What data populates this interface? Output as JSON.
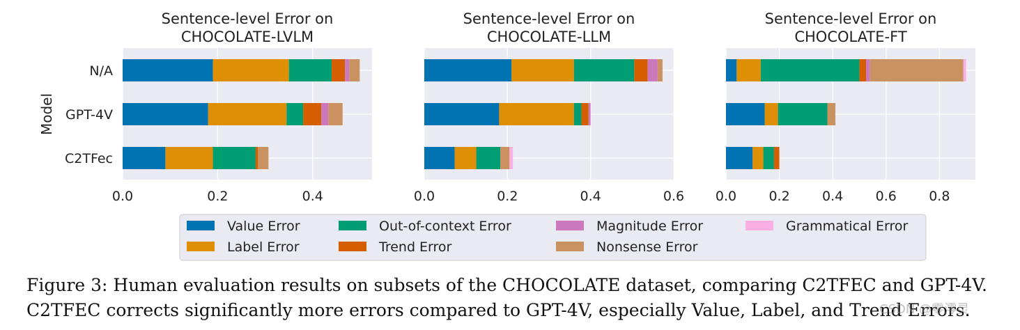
{
  "colors": {
    "Value Error": "#0173b2",
    "Label Error": "#de8f05",
    "Out-of-context Error": "#029e73",
    "Trend Error": "#d55e00",
    "Magnitude Error": "#cc78bc",
    "Nonsense Error": "#ca9161",
    "Grammatical Error": "#fbafe4",
    "panel_bg": "#eaeaf2"
  },
  "chart_data": [
    {
      "type": "bar",
      "orientation": "horizontal-stacked",
      "title_line1": "Sentence-level Error on",
      "title_line2": "CHOCOLATE-LVLM",
      "ylabel": "Model",
      "categories": [
        "N/A",
        "GPT-4V",
        "C2TFec"
      ],
      "xlim": [
        0,
        0.525
      ],
      "xticks": [
        "0.0",
        "0.2",
        "0.4"
      ],
      "xtick_values": [
        0,
        0.2,
        0.4
      ],
      "series": [
        {
          "name": "Value Error",
          "values": [
            0.19,
            0.18,
            0.09
          ]
        },
        {
          "name": "Label Error",
          "values": [
            0.16,
            0.165,
            0.1
          ]
        },
        {
          "name": "Out-of-context Error",
          "values": [
            0.09,
            0.035,
            0.09
          ]
        },
        {
          "name": "Trend Error",
          "values": [
            0.028,
            0.038,
            0.005
          ]
        },
        {
          "name": "Magnitude Error",
          "values": [
            0.009,
            0.015,
            0.0
          ]
        },
        {
          "name": "Nonsense Error",
          "values": [
            0.022,
            0.03,
            0.022
          ]
        },
        {
          "name": "Grammatical Error",
          "values": [
            0.0,
            0.0,
            0.0
          ]
        }
      ]
    },
    {
      "type": "bar",
      "orientation": "horizontal-stacked",
      "title_line1": "Sentence-level Error on",
      "title_line2": "CHOCOLATE-LLM",
      "categories": [
        "N/A",
        "GPT-4V",
        "C2TFec"
      ],
      "xlim": [
        0,
        0.6
      ],
      "xticks": [
        "0.0",
        "0.2",
        "0.4",
        "0.6"
      ],
      "xtick_values": [
        0,
        0.2,
        0.4,
        0.6
      ],
      "series": [
        {
          "name": "Value Error",
          "values": [
            0.21,
            0.18,
            0.073
          ]
        },
        {
          "name": "Label Error",
          "values": [
            0.15,
            0.18,
            0.052
          ]
        },
        {
          "name": "Out-of-context Error",
          "values": [
            0.145,
            0.018,
            0.058
          ]
        },
        {
          "name": "Trend Error",
          "values": [
            0.032,
            0.017,
            0.0
          ]
        },
        {
          "name": "Magnitude Error",
          "values": [
            0.024,
            0.005,
            0.0
          ]
        },
        {
          "name": "Nonsense Error",
          "values": [
            0.012,
            0.0,
            0.022
          ]
        },
        {
          "name": "Grammatical Error",
          "values": [
            0.0,
            0.0,
            0.008
          ]
        }
      ]
    },
    {
      "type": "bar",
      "orientation": "horizontal-stacked",
      "title_line1": "Sentence-level Error on",
      "title_line2": "CHOCOLATE-FT",
      "categories": [
        "N/A",
        "GPT-4V",
        "C2TFec"
      ],
      "xlim": [
        0,
        0.935
      ],
      "xticks": [
        "0.0",
        "0.2",
        "0.4",
        "0.6",
        "0.8"
      ],
      "xtick_values": [
        0,
        0.2,
        0.4,
        0.6,
        0.8
      ],
      "series": [
        {
          "name": "Value Error",
          "values": [
            0.04,
            0.145,
            0.1
          ]
        },
        {
          "name": "Label Error",
          "values": [
            0.09,
            0.05,
            0.04
          ]
        },
        {
          "name": "Out-of-context Error",
          "values": [
            0.37,
            0.185,
            0.04
          ]
        },
        {
          "name": "Trend Error",
          "values": [
            0.025,
            0.0,
            0.02
          ]
        },
        {
          "name": "Magnitude Error",
          "values": [
            0.015,
            0.0,
            0.0
          ]
        },
        {
          "name": "Nonsense Error",
          "values": [
            0.35,
            0.03,
            0.0
          ]
        },
        {
          "name": "Grammatical Error",
          "values": [
            0.01,
            0.0,
            0.0
          ]
        }
      ]
    }
  ],
  "legend": {
    "placement": "bottom-center",
    "items": [
      "Value Error",
      "Label Error",
      "Out-of-context Error",
      "Trend Error",
      "Magnitude Error",
      "Nonsense Error",
      "Grammatical Error"
    ]
  },
  "caption": {
    "line1": "Figure 3: Human evaluation results on subsets of the CHOCOLATE dataset, comparing C2TFEC and GPT-4V.",
    "line2": "C2TFEC corrects significantly more errors compared to GPT-4V, especially Value, Label, and Trend Errors."
  },
  "watermark": "CSDN @零澪灵"
}
